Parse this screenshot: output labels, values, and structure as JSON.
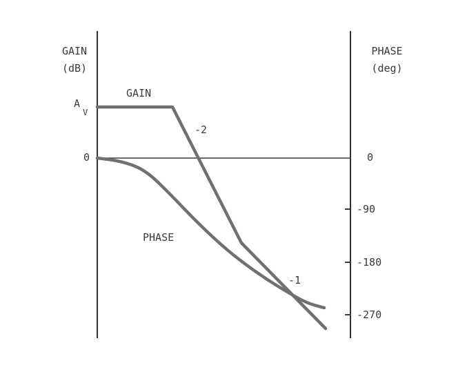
{
  "chart_data": {
    "type": "line",
    "title": "",
    "left_axis": {
      "label_line1": "GAIN",
      "label_line2": "(dB)",
      "ticks": [
        {
          "label": "A",
          "sub": "V",
          "value": "Av"
        },
        {
          "label": "0",
          "value": 0
        }
      ]
    },
    "right_axis": {
      "label_line1": "PHASE",
      "label_line2": "(deg)",
      "ticks": [
        {
          "label": "0",
          "value": 0
        },
        {
          "label": "-90",
          "value": -90
        },
        {
          "label": "-180",
          "value": -180
        },
        {
          "label": "-270",
          "value": -270
        }
      ]
    },
    "series": [
      {
        "name": "GAIN",
        "description": "flat at Av, then slope -2, then slope -1",
        "segments": [
          {
            "slope_label": ""
          },
          {
            "slope_label": "-2"
          },
          {
            "slope_label": "-1"
          }
        ]
      },
      {
        "name": "PHASE",
        "values_deg": [
          0,
          -5,
          -20,
          -60,
          -110,
          -160,
          -200,
          -230,
          -250,
          -258
        ]
      }
    ],
    "colors": {
      "curve": "#707070",
      "axis": "#2f2f2f",
      "text": "#3a3a3a"
    }
  }
}
